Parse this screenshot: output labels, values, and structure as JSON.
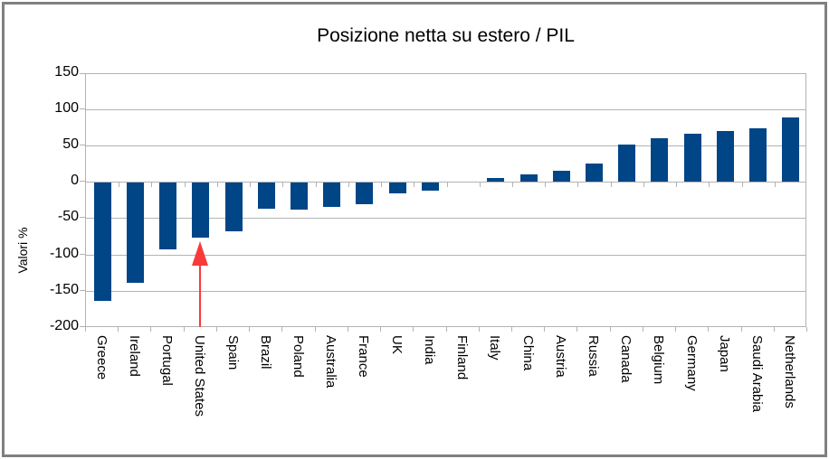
{
  "frame": {
    "border_color": "#808080",
    "background_color": "#ffffff"
  },
  "chart_data": {
    "type": "bar",
    "title": "Posizione netta su estero / PIL",
    "ylabel": "Valori %",
    "xlabel": "",
    "categories": [
      "Greece",
      "Ireland",
      "Portugal",
      "United States",
      "Spain",
      "Brazil",
      "Poland",
      "Australia",
      "France",
      "UK",
      "India",
      "Finland",
      "Italy",
      "China",
      "Austria",
      "Russia",
      "Canada",
      "Belgium",
      "Germany",
      "Japan",
      "Saudi Arabia",
      "Netherlands"
    ],
    "values": [
      -163,
      -138,
      -92,
      -76,
      -67,
      -36,
      -37,
      -33,
      -29,
      -14,
      -11,
      0,
      7,
      12,
      16,
      27,
      53,
      61,
      68,
      72,
      75,
      90
    ],
    "ylim": [
      -200,
      150
    ],
    "yticks": [
      150,
      100,
      50,
      0,
      -50,
      -100,
      -150,
      -200
    ],
    "grid": true,
    "legend": false,
    "bar_color": "#004586",
    "gridline_color": "#b3b3b3",
    "tick_color": "#b3b3b3",
    "text_color": "#000000",
    "annotation": {
      "type": "arrow",
      "target": "United States",
      "direction": "up",
      "color": "#f83a3a"
    }
  }
}
